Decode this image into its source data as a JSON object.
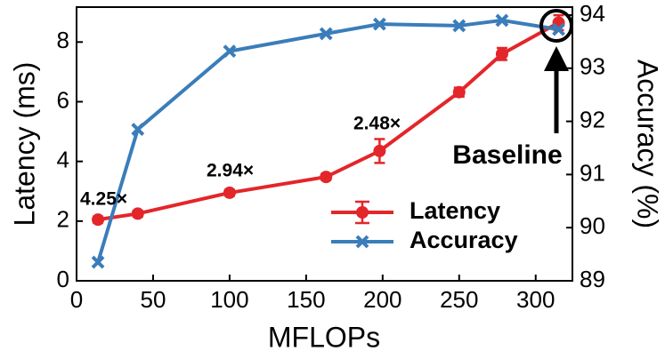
{
  "chart_data": {
    "type": "line",
    "xlabel": "MFLOPs",
    "ylabel": "Latency (ms)",
    "y2label": "Accuracy (%)",
    "x": [
      14,
      40,
      100,
      163,
      198,
      250,
      278,
      315
    ],
    "series": [
      {
        "name": "Latency",
        "color": "#e3262a",
        "marker": "o",
        "axis": "y",
        "values": [
          2.05,
          2.25,
          2.95,
          3.48,
          4.35,
          6.32,
          7.6,
          8.65
        ],
        "errors": [
          0.1,
          0.1,
          0.1,
          0.1,
          0.4,
          0.15,
          0.2,
          0.25
        ]
      },
      {
        "name": "Accuracy",
        "color": "#3a7dba",
        "marker": "x",
        "axis": "y2",
        "values": [
          89.35,
          91.85,
          93.32,
          93.65,
          93.83,
          93.8,
          93.9,
          93.73
        ]
      }
    ],
    "xlim": [
      0,
      324
    ],
    "xticks": [
      0,
      50,
      100,
      150,
      200,
      250,
      300
    ],
    "ylim": [
      0,
      9.17
    ],
    "yticks": [
      0,
      2,
      4,
      6,
      8
    ],
    "y2lim": [
      89,
      94.15
    ],
    "y2ticks": [
      89,
      90,
      91,
      92,
      93,
      94
    ],
    "annotations": [
      "4.25×",
      "2.94×",
      "2.48×",
      "Baseline"
    ],
    "legend": "lower right"
  }
}
